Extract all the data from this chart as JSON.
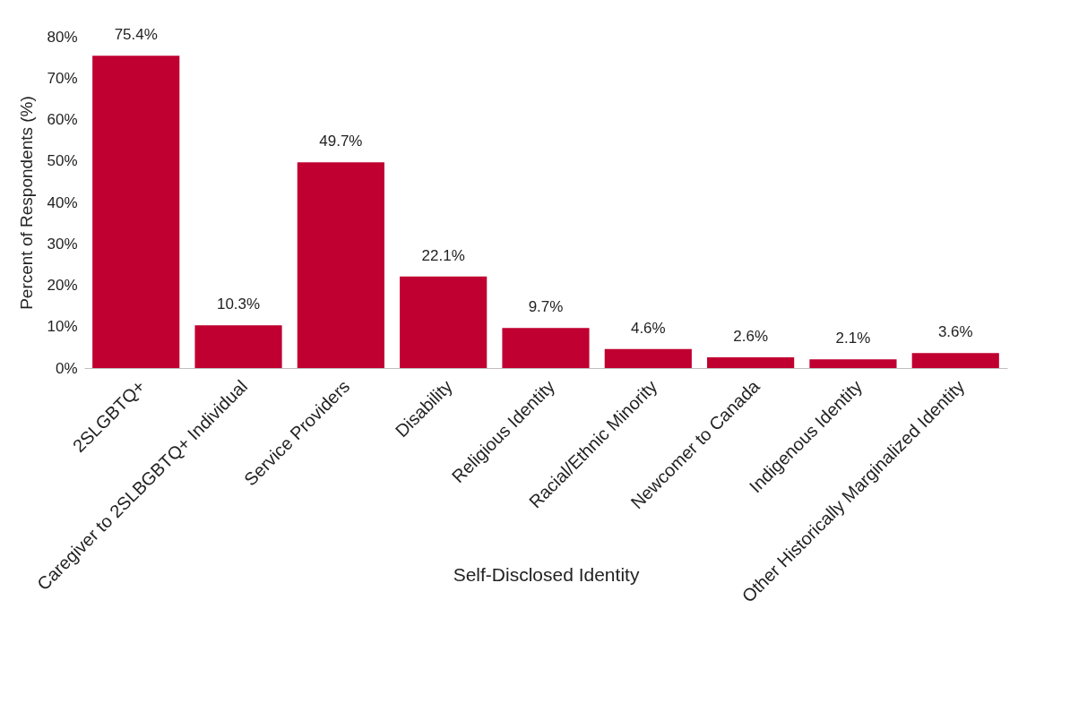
{
  "chart_data": {
    "type": "bar",
    "xlabel": "Self-Disclosed Identity",
    "ylabel": "Percent of Respondents (%)",
    "categories": [
      "2SLGBTQ+",
      "Caregiver to 2SLBGBTQ+ Individual",
      "Service Providers",
      "Disability",
      "Religious Identity",
      "Racial/Ethnic Minority",
      "Newcomer to Canada",
      "Indigenous Identity",
      "Other Historically Marginalized Identity"
    ],
    "values": [
      75.4,
      10.3,
      49.7,
      22.1,
      9.7,
      4.6,
      2.6,
      2.1,
      3.6
    ],
    "value_labels": [
      "75.4%",
      "10.3%",
      "49.7%",
      "22.1%",
      "9.7%",
      "4.6%",
      "2.6%",
      "2.1%",
      "3.6%"
    ],
    "color": "#c00030",
    "ylim": [
      0,
      80
    ],
    "yticks": [
      {
        "value": 0,
        "label": "0%"
      },
      {
        "value": 10,
        "label": "10%"
      },
      {
        "value": 20,
        "label": "20%"
      },
      {
        "value": 30,
        "label": "30%"
      },
      {
        "value": 40,
        "label": "40%"
      },
      {
        "value": 50,
        "label": "50%"
      },
      {
        "value": 60,
        "label": "60%"
      },
      {
        "value": 70,
        "label": "70%"
      },
      {
        "value": 80,
        "label": "80%"
      }
    ],
    "grid": false
  }
}
